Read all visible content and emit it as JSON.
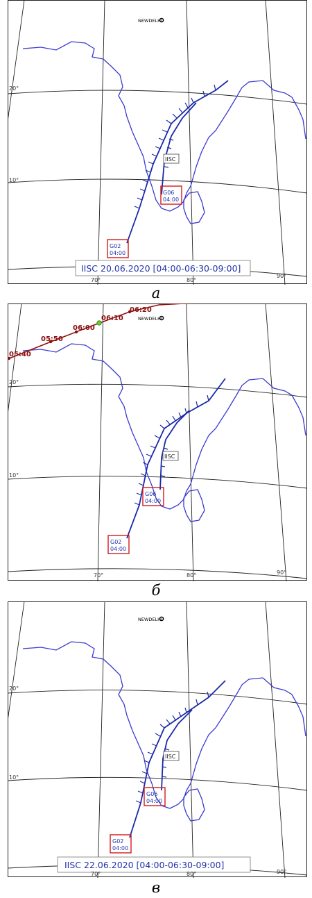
{
  "figure": {
    "panels": [
      {
        "id": "a",
        "caption": "а",
        "city_label": "NEWDELHI",
        "station_label": "IISC",
        "lat_labels": [
          "20°",
          "10°"
        ],
        "lon_labels": [
          "70°",
          "80°",
          "90°"
        ],
        "sat1_label": [
          "G02",
          "04:00"
        ],
        "sat2_label": [
          "G06",
          "04:00"
        ],
        "title": "IISC 20.06.2020 [04:00-06:30-09:00]"
      },
      {
        "id": "b",
        "caption": "б",
        "city_label": "NEWDELHI",
        "station_label": "IISC",
        "lat_labels": [
          "20°",
          "10°"
        ],
        "lon_labels": [
          "70°",
          "80°",
          "90°"
        ],
        "sat1_label": [
          "G02",
          "04:00"
        ],
        "sat2_label": [
          "G06",
          "04:00"
        ],
        "title": "",
        "red_track_labels": [
          "05:40",
          "05:50",
          "06:00",
          "06:10",
          "06:20"
        ]
      },
      {
        "id": "v",
        "caption": "в",
        "city_label": "NEWDELHI",
        "station_label": "IISC",
        "lat_labels": [
          "20°",
          "10°"
        ],
        "lon_labels": [
          "70°",
          "80°",
          "90°"
        ],
        "sat1_label": [
          "G02",
          "04:00"
        ],
        "sat2_label": [
          "G06",
          "04:00"
        ],
        "title": "IISC 22.06.2020 [04:00-06:30-09:00]"
      }
    ],
    "colors": {
      "coast": "#3a3ad0",
      "track": "#1a2aa8",
      "grid": "#222222",
      "box": "#d21a1a",
      "red_track": "#8b1010",
      "green_marker": "#6ad02a"
    }
  }
}
